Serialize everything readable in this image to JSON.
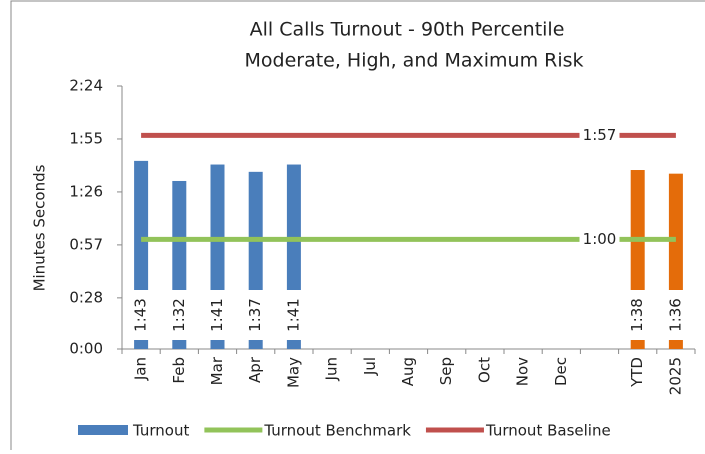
{
  "chart_data": {
    "type": "bar",
    "title": "All Calls Turnout - 90th Percentile",
    "subtitle": "Moderate, High, and Maximum Risk",
    "y_label": "Minutes Seconds",
    "categories": [
      "Jan",
      "Feb",
      "Mar",
      "Apr",
      "May",
      "Jun",
      "Jul",
      "Aug",
      "Sep",
      "Oct",
      "Nov",
      "Dec",
      null,
      "YTD",
      "2025"
    ],
    "series": [
      {
        "name": "Turnout",
        "type": "bar",
        "color": "#4a7ebb",
        "colors": [
          "#4a7ebb",
          "#4a7ebb",
          "#4a7ebb",
          "#4a7ebb",
          "#4a7ebb",
          "#4a7ebb",
          "#4a7ebb",
          "#4a7ebb",
          "#4a7ebb",
          "#4a7ebb",
          "#4a7ebb",
          "#4a7ebb",
          "#4a7ebb",
          "#e46c0a",
          "#e46c0a"
        ],
        "values": [
          103,
          92,
          101,
          97,
          101,
          null,
          null,
          null,
          null,
          null,
          null,
          null,
          null,
          98,
          96
        ],
        "value_labels": [
          "1:43",
          "1:32",
          "1:41",
          "1:37",
          "1:41",
          null,
          null,
          null,
          null,
          null,
          null,
          null,
          null,
          "1:38",
          "1:36"
        ]
      },
      {
        "name": "Turnout Benchmark",
        "type": "line",
        "color": "#92c35a",
        "values": [
          60,
          60,
          60,
          60,
          60,
          60,
          60,
          60,
          60,
          60,
          60,
          60,
          60,
          60,
          60
        ],
        "value_labels": [
          null,
          null,
          null,
          null,
          null,
          null,
          null,
          null,
          null,
          null,
          null,
          null,
          "1:00",
          null,
          null
        ]
      },
      {
        "name": "Turnout Baseline",
        "type": "line",
        "color": "#c0504d",
        "values": [
          117,
          117,
          117,
          117,
          117,
          117,
          117,
          117,
          117,
          117,
          117,
          117,
          117,
          117,
          117
        ],
        "value_labels": [
          null,
          null,
          null,
          null,
          null,
          null,
          null,
          null,
          null,
          null,
          null,
          null,
          "1:57",
          null,
          null
        ]
      }
    ],
    "ylim": [
      0,
      144
    ],
    "yticks": [
      {
        "value": 0,
        "label": "0:00"
      },
      {
        "value": 28,
        "label": "0:28"
      },
      {
        "value": 57,
        "label": "0:57"
      },
      {
        "value": 86,
        "label": "1:26"
      },
      {
        "value": 115,
        "label": "1:55"
      },
      {
        "value": 144,
        "label": "2:24"
      }
    ],
    "grid": false,
    "legend": "bottom"
  }
}
